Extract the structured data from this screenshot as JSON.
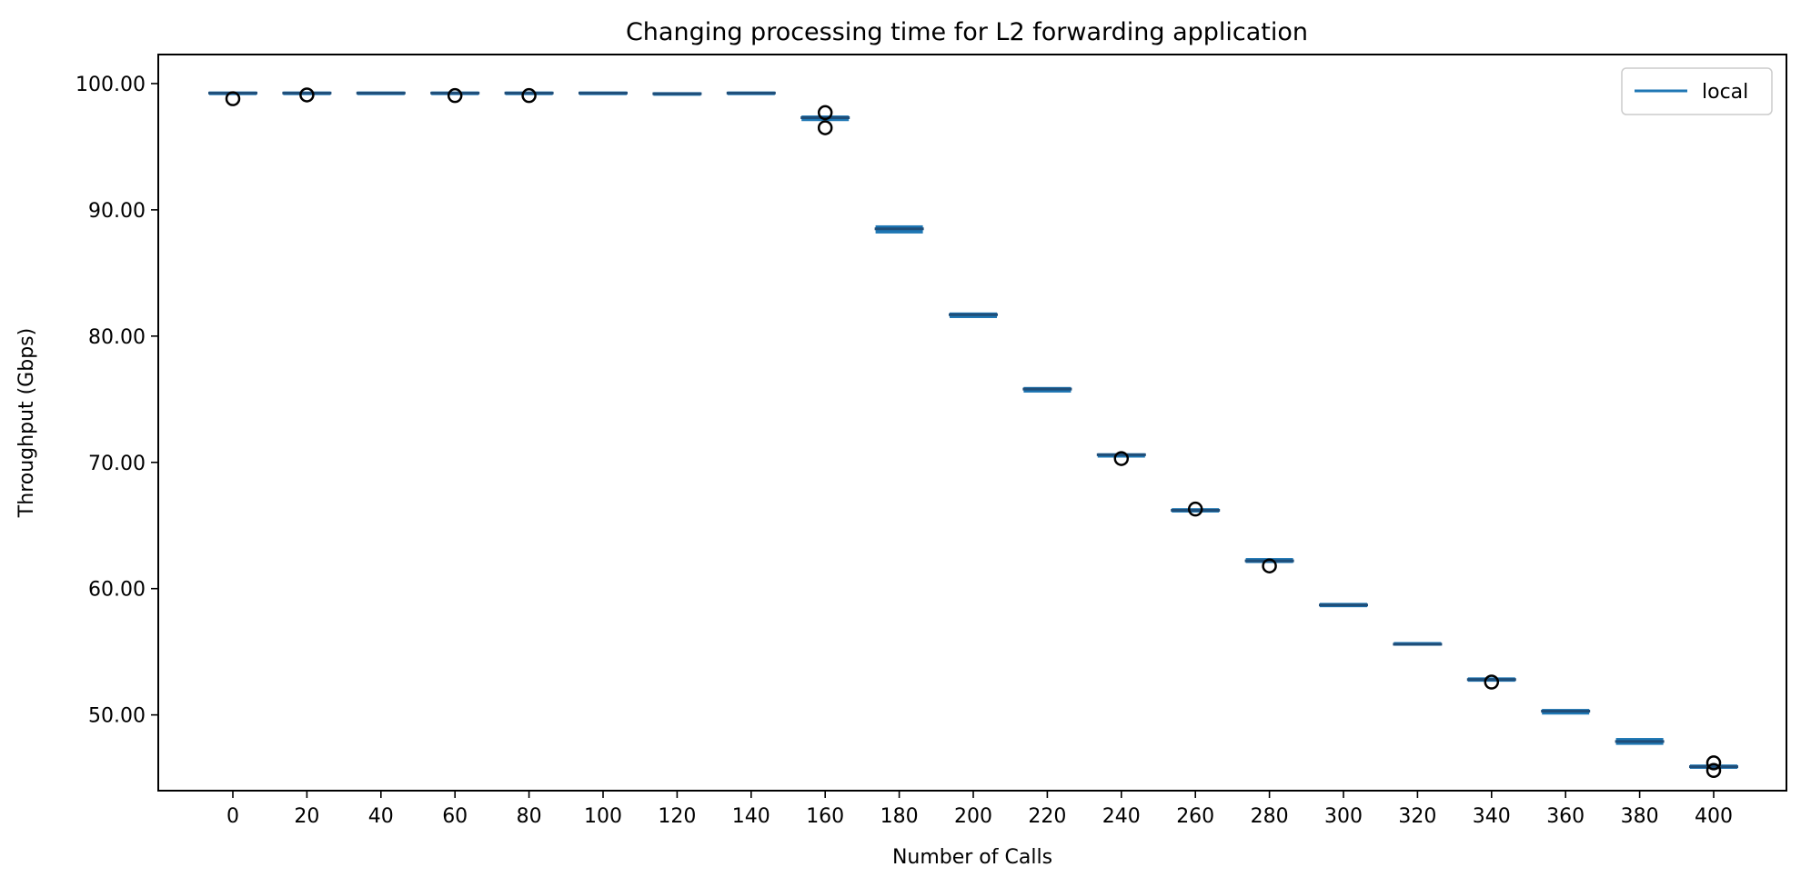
{
  "chart_data": {
    "type": "box",
    "title": "Changing processing time for L2 forwarding application",
    "xlabel": "Number of Calls",
    "ylabel": "Throughput (Gbps)",
    "ylim": [
      44.0,
      102.3
    ],
    "yticks": [
      50,
      60,
      70,
      80,
      90,
      100
    ],
    "ytick_labels": [
      "50.00",
      "60.00",
      "70.00",
      "80.00",
      "90.00",
      "100.00"
    ],
    "grid": false,
    "legend": {
      "position": "top-right",
      "entries": [
        "local"
      ]
    },
    "colors": {
      "box": "#1f77b4",
      "median": "#1f4e79",
      "outlier": "#000000"
    },
    "categories": [
      "0",
      "20",
      "40",
      "60",
      "80",
      "100",
      "120",
      "140",
      "160",
      "180",
      "200",
      "220",
      "240",
      "260",
      "280",
      "300",
      "320",
      "340",
      "360",
      "380",
      "400"
    ],
    "series": [
      {
        "name": "local",
        "boxes": [
          {
            "x": 0,
            "median": 99.25,
            "q1": 99.2,
            "q3": 99.3,
            "outliers": [
              98.8
            ]
          },
          {
            "x": 20,
            "median": 99.25,
            "q1": 99.2,
            "q3": 99.3,
            "outliers": [
              99.1
            ]
          },
          {
            "x": 40,
            "median": 99.25,
            "q1": 99.2,
            "q3": 99.3,
            "outliers": []
          },
          {
            "x": 60,
            "median": 99.25,
            "q1": 99.2,
            "q3": 99.3,
            "outliers": [
              99.05
            ]
          },
          {
            "x": 80,
            "median": 99.25,
            "q1": 99.2,
            "q3": 99.3,
            "outliers": [
              99.05
            ]
          },
          {
            "x": 100,
            "median": 99.25,
            "q1": 99.2,
            "q3": 99.3,
            "outliers": []
          },
          {
            "x": 120,
            "median": 99.2,
            "q1": 99.15,
            "q3": 99.25,
            "outliers": []
          },
          {
            "x": 140,
            "median": 99.25,
            "q1": 99.2,
            "q3": 99.3,
            "outliers": []
          },
          {
            "x": 160,
            "median": 97.3,
            "q1": 97.1,
            "q3": 97.4,
            "outliers": [
              97.7,
              96.5
            ]
          },
          {
            "x": 180,
            "median": 88.5,
            "q1": 88.2,
            "q3": 88.7,
            "outliers": []
          },
          {
            "x": 200,
            "median": 81.7,
            "q1": 81.5,
            "q3": 81.8,
            "outliers": []
          },
          {
            "x": 220,
            "median": 75.8,
            "q1": 75.6,
            "q3": 75.9,
            "outliers": []
          },
          {
            "x": 240,
            "median": 70.6,
            "q1": 70.45,
            "q3": 70.65,
            "outliers": [
              70.3
            ]
          },
          {
            "x": 260,
            "median": 66.2,
            "q1": 66.1,
            "q3": 66.3,
            "outliers": [
              66.3
            ]
          },
          {
            "x": 280,
            "median": 62.2,
            "q1": 62.1,
            "q3": 62.35,
            "outliers": [
              61.8
            ]
          },
          {
            "x": 300,
            "median": 58.7,
            "q1": 58.6,
            "q3": 58.8,
            "outliers": []
          },
          {
            "x": 320,
            "median": 55.6,
            "q1": 55.55,
            "q3": 55.7,
            "outliers": []
          },
          {
            "x": 340,
            "median": 52.8,
            "q1": 52.7,
            "q3": 52.9,
            "outliers": [
              52.6
            ]
          },
          {
            "x": 360,
            "median": 50.3,
            "q1": 50.1,
            "q3": 50.4,
            "outliers": []
          },
          {
            "x": 380,
            "median": 47.9,
            "q1": 47.7,
            "q3": 48.1,
            "outliers": []
          },
          {
            "x": 400,
            "median": 45.9,
            "q1": 45.8,
            "q3": 46.0,
            "outliers": [
              46.2,
              45.6
            ]
          }
        ]
      }
    ]
  }
}
